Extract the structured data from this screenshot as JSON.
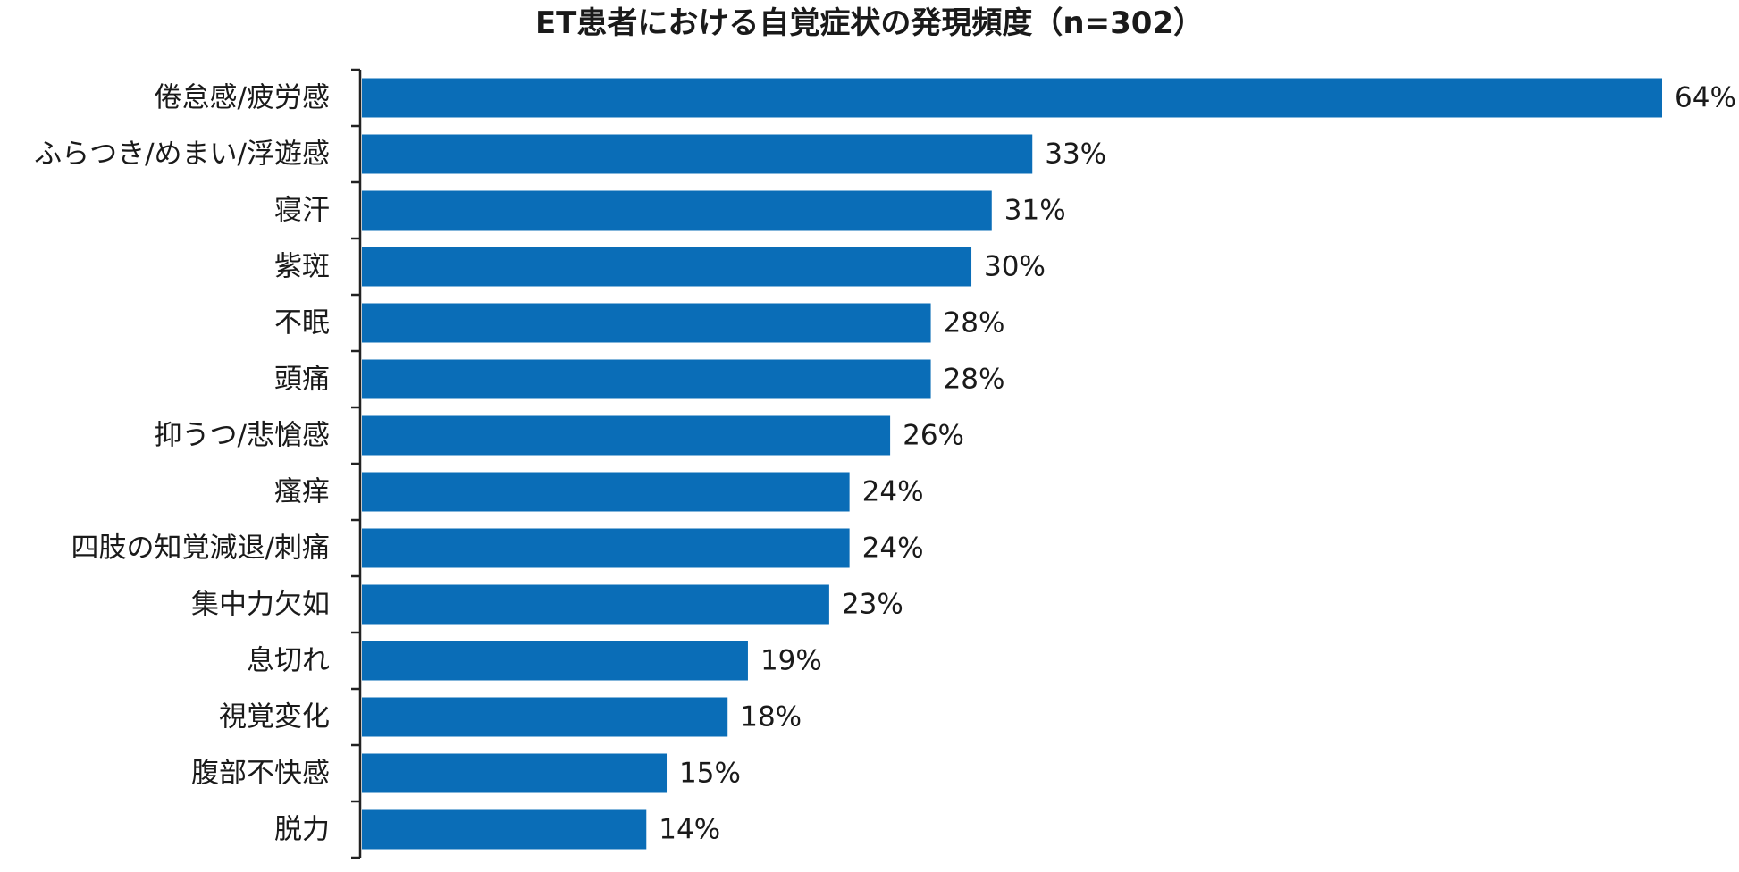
{
  "chart_data": {
    "type": "bar",
    "orientation": "horizontal",
    "title": "ET患者における自覚症状の発現頻度（n=302）",
    "categories": [
      "倦怠感/疲労感",
      "ふらつき/めまい/浮遊感",
      "寝汗",
      "紫斑",
      "不眠",
      "頭痛",
      "抑うつ/悲愴感",
      "瘙痒",
      "四肢の知覚減退/刺痛",
      "集中力欠如",
      "息切れ",
      "視覚変化",
      "腹部不快感",
      "脱力"
    ],
    "values": [
      64,
      33,
      31,
      30,
      28,
      28,
      26,
      24,
      24,
      23,
      19,
      18,
      15,
      14
    ],
    "value_labels": [
      "64%",
      "33%",
      "31%",
      "30%",
      "28%",
      "28%",
      "26%",
      "24%",
      "24%",
      "23%",
      "19%",
      "18%",
      "15%",
      "14%"
    ],
    "unit": "%",
    "xlim": [
      0,
      64
    ],
    "xlabel": "",
    "ylabel": "",
    "grid": false,
    "legend": "none",
    "bar_color": "#0a6db7",
    "axis_color": "#222222"
  }
}
